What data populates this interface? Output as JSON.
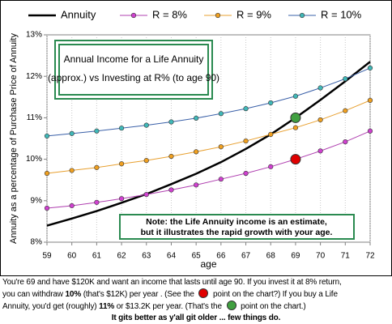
{
  "chart_data": {
    "type": "line",
    "title": "Annual Income for a Life Annuity",
    "subtitle": "(approx.)  vs Investing at R% (to age 90)",
    "annotations": [
      "Note: the Life Annuity income is an estimate,",
      "but it illustrates the rapid growth with your age."
    ],
    "x": [
      59,
      60,
      61,
      62,
      63,
      64,
      65,
      66,
      67,
      68,
      69,
      70,
      71,
      72
    ],
    "xlim": [
      59,
      72
    ],
    "xticks": [
      59,
      60,
      61,
      62,
      63,
      64,
      65,
      66,
      67,
      68,
      69,
      70,
      71,
      72
    ],
    "xlabel": "age",
    "ylabel": "Annuity as a percentage of Purchase Price of Annuity",
    "ylim": [
      8,
      13
    ],
    "yticks": [
      {
        "value": 8,
        "label": "8%"
      },
      {
        "value": 9,
        "label": "9%"
      },
      {
        "value": 10,
        "label": "10%"
      },
      {
        "value": 11,
        "label": "11%"
      },
      {
        "value": 12,
        "label": "12%"
      },
      {
        "value": 13,
        "label": "13%"
      }
    ],
    "grid": true,
    "legend": "top",
    "series": [
      {
        "name": "Annuity",
        "color": "#000000",
        "values": [
          8.4,
          8.57,
          8.75,
          8.95,
          9.16,
          9.4,
          9.65,
          9.93,
          10.25,
          10.6,
          11.0,
          11.43,
          11.88,
          12.35
        ]
      },
      {
        "name": "R = 8%",
        "color": "#b040b0",
        "values": [
          8.82,
          8.88,
          8.96,
          9.05,
          9.15,
          9.26,
          9.38,
          9.52,
          9.66,
          9.82,
          10.0,
          10.2,
          10.42,
          10.68
        ]
      },
      {
        "name": "R = 9%",
        "color": "#e8a030",
        "values": [
          9.66,
          9.73,
          9.8,
          9.89,
          9.97,
          10.07,
          10.18,
          10.3,
          10.44,
          10.6,
          10.76,
          10.95,
          11.17,
          11.42
        ]
      },
      {
        "name": "R = 10%",
        "color": "#3a60a8",
        "values": [
          10.56,
          10.62,
          10.68,
          10.75,
          10.82,
          10.9,
          10.99,
          11.1,
          11.22,
          11.36,
          11.52,
          11.72,
          11.94,
          12.2
        ]
      }
    ]
  },
  "caption": [
    [
      "You're 69 and have $120K and want an income that lasts until age 90. If you invest it at 8% return,"
    ],
    [
      "you can withdraw ",
      "10%",
      " (that's $12K) per year . (See the ",
      " point on the chart?) If you buy a Life"
    ],
    [
      "Annuity, you'd get (roughly) ",
      "11%",
      " or $13.2K per year.  (That's the ",
      " point on the chart.)"
    ],
    [
      "It gits better as y'all git older ... few things do."
    ]
  ]
}
